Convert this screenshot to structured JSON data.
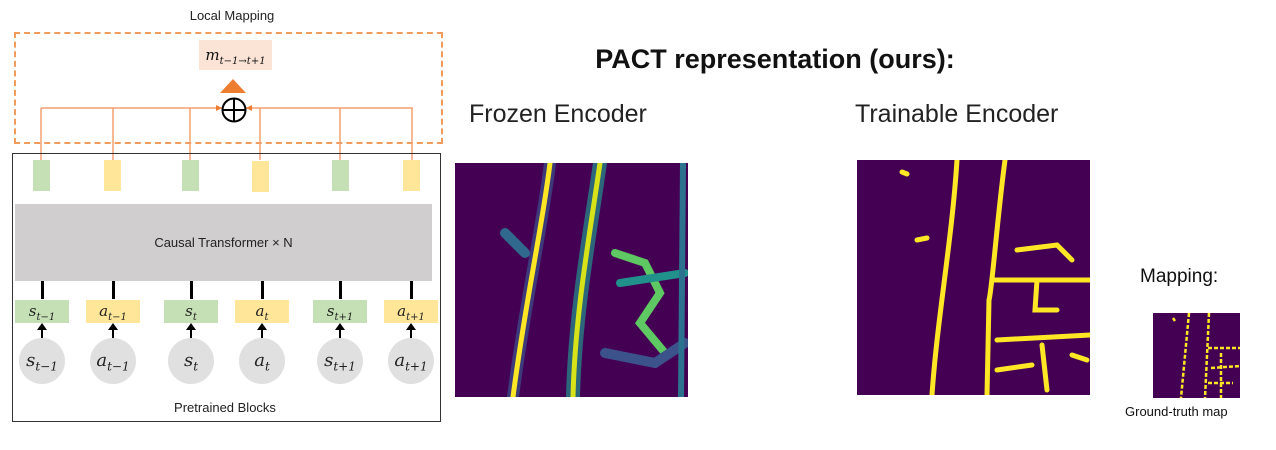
{
  "local_mapping": {
    "title": "Local Mapping",
    "output_label": "m",
    "output_subscript": "t−1→t+1",
    "sum_icon": "circle-plus-icon"
  },
  "pretrained": {
    "title": "Pretrained Blocks",
    "transformer_label": "Causal Transformer × N",
    "tokens": [
      {
        "base": "s",
        "sub": "t−1",
        "type": "state"
      },
      {
        "base": "a",
        "sub": "t−1",
        "type": "action"
      },
      {
        "base": "s",
        "sub": "t",
        "type": "state"
      },
      {
        "base": "a",
        "sub": "t",
        "type": "action"
      },
      {
        "base": "s",
        "sub": "t+1",
        "type": "state"
      },
      {
        "base": "a",
        "sub": "t+1",
        "type": "action"
      }
    ]
  },
  "right": {
    "title": "PACT representation (ours):",
    "frozen_label": "Frozen Encoder",
    "trainable_label": "Trainable Encoder",
    "mapping_label": "Mapping:",
    "gt_caption": "Ground-truth map"
  },
  "colors": {
    "state": "#c5e0b4",
    "action": "#ffe699",
    "accent": "#ed7d31",
    "map_bg": "#440154",
    "map_fg": "#fde725",
    "map_mid": "#21918c"
  }
}
